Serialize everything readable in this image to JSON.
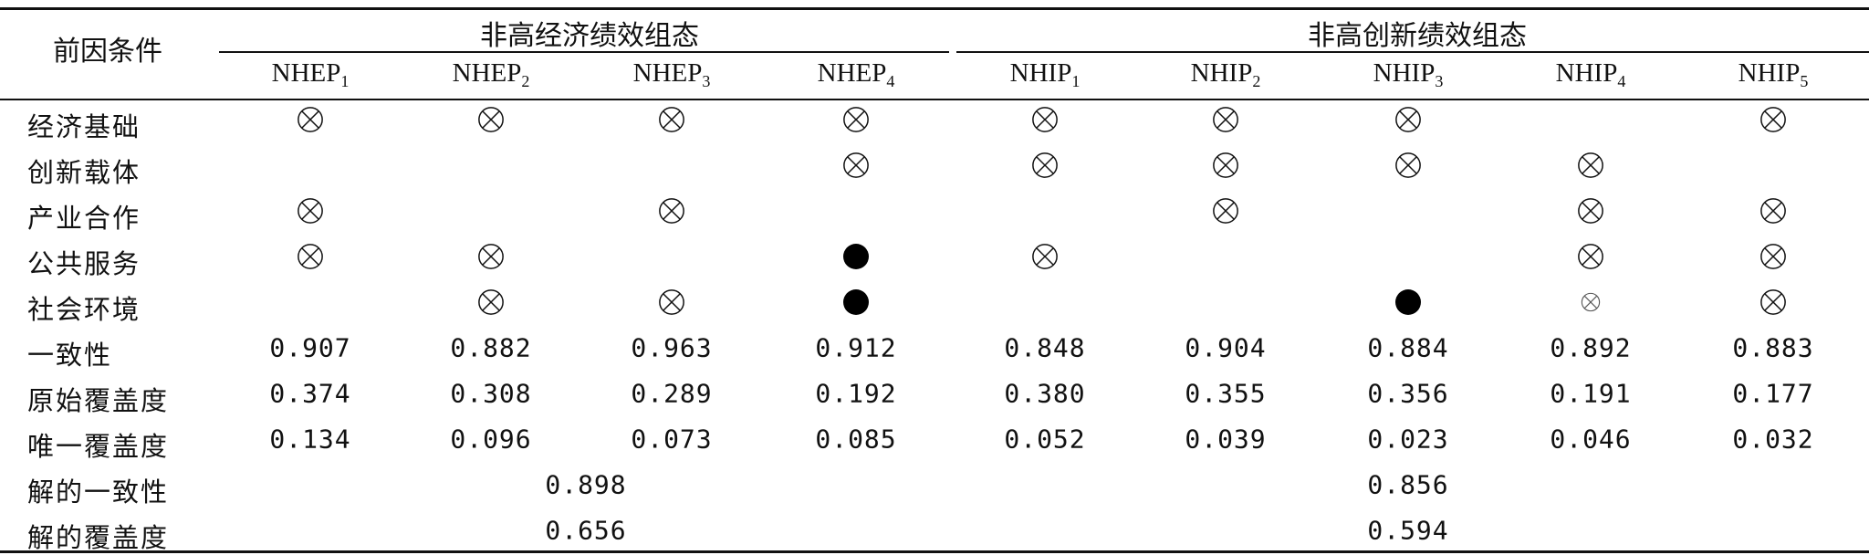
{
  "table": {
    "corner_label": "前因条件",
    "groups": [
      {
        "label": "非高经济绩效组态"
      },
      {
        "label": "非高创新绩效组态"
      }
    ],
    "columns": [
      {
        "base": "NHEP",
        "sub": "1"
      },
      {
        "base": "NHEP",
        "sub": "2"
      },
      {
        "base": "NHEP",
        "sub": "3"
      },
      {
        "base": "NHEP",
        "sub": "4"
      },
      {
        "base": "NHIP",
        "sub": "1"
      },
      {
        "base": "NHIP",
        "sub": "2"
      },
      {
        "base": "NHIP",
        "sub": "3"
      },
      {
        "base": "NHIP",
        "sub": "4"
      },
      {
        "base": "NHIP",
        "sub": "5"
      }
    ],
    "legend_symbols": {
      "otimes": "⊗ core/peripheral absence",
      "dot": "● presence"
    },
    "condition_rows": [
      {
        "label": "经济基础",
        "cells": [
          "otimes",
          "otimes",
          "otimes",
          "otimes",
          "otimes",
          "otimes",
          "otimes",
          "",
          "otimes"
        ]
      },
      {
        "label": "创新载体",
        "cells": [
          "",
          "",
          "",
          "otimes",
          "otimes",
          "otimes",
          "otimes",
          "otimes",
          ""
        ]
      },
      {
        "label": "产业合作",
        "cells": [
          "otimes",
          "",
          "otimes",
          "",
          "",
          "otimes",
          "",
          "otimes",
          "otimes"
        ]
      },
      {
        "label": "公共服务",
        "cells": [
          "otimes",
          "otimes",
          "",
          "dot",
          "otimes",
          "",
          "",
          "otimes",
          "otimes"
        ]
      },
      {
        "label": "社会环境",
        "cells": [
          "",
          "otimes",
          "otimes",
          "dot",
          "",
          "",
          "dot",
          "otimes-small",
          "otimes"
        ]
      }
    ],
    "metric_rows": [
      {
        "label": "一致性",
        "values": [
          "0.907",
          "0.882",
          "0.963",
          "0.912",
          "0.848",
          "0.904",
          "0.884",
          "0.892",
          "0.883"
        ]
      },
      {
        "label": "原始覆盖度",
        "values": [
          "0.374",
          "0.308",
          "0.289",
          "0.192",
          "0.380",
          "0.355",
          "0.356",
          "0.191",
          "0.177"
        ]
      },
      {
        "label": "唯一覆盖度",
        "values": [
          "0.134",
          "0.096",
          "0.073",
          "0.085",
          "0.052",
          "0.039",
          "0.023",
          "0.046",
          "0.032"
        ]
      }
    ],
    "solution_rows": [
      {
        "label": "解的一致性",
        "values": [
          "0.898",
          "0.856"
        ]
      },
      {
        "label": "解的覆盖度",
        "values": [
          "0.656",
          "0.594"
        ]
      }
    ]
  }
}
